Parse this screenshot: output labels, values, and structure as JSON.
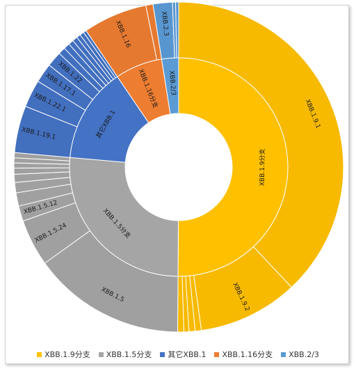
{
  "chart_data": {
    "type": "sunburst",
    "title": "",
    "legend_placement": "bottom",
    "colors": {
      "其它XBB.1": "#4472c4",
      "XBB.1.16分支": "#ed7d31",
      "XBB.1.5分支": "#a5a5a5",
      "XBB.1.9分支": "#ffc000",
      "XBB.2/3": "#5b9bd5"
    },
    "inner": [
      {
        "name": "XBB.1.9分支",
        "value": 50.1
      },
      {
        "name": "XBB.1.5分支",
        "value": 26.3
      },
      {
        "name": "其它XBB.1",
        "value": 14.1
      },
      {
        "name": "XBB.1.16分支",
        "value": 7.0
      },
      {
        "name": "XBB.2/3",
        "value": 2.5
      }
    ],
    "outer": [
      {
        "group": "XBB.1.9分支",
        "name": "XBB.1.9.1",
        "value": 38.0
      },
      {
        "group": "XBB.1.9分支",
        "name": "XBB.1.9.2",
        "value": 9.8
      },
      {
        "group": "XBB.1.9分支",
        "name": "",
        "value": 0.6
      },
      {
        "group": "XBB.1.9分支",
        "name": "",
        "value": 0.6
      },
      {
        "group": "XBB.1.9分支",
        "name": "",
        "value": 0.5
      },
      {
        "group": "XBB.1.9分支",
        "name": "",
        "value": 0.6
      },
      {
        "group": "XBB.1.5分支",
        "name": "XBB.1.5",
        "value": 15.0
      },
      {
        "group": "XBB.1.5分支",
        "name": "XBB.1.5.24",
        "value": 4.6
      },
      {
        "group": "XBB.1.5分支",
        "name": "XBB.1.5.12",
        "value": 1.5
      },
      {
        "group": "XBB.1.5分支",
        "name": "",
        "value": 1.3
      },
      {
        "group": "XBB.1.5分支",
        "name": "",
        "value": 1.0
      },
      {
        "group": "XBB.1.5分支",
        "name": "",
        "value": 0.8
      },
      {
        "group": "XBB.1.5分支",
        "name": "",
        "value": 0.6
      },
      {
        "group": "XBB.1.5分支",
        "name": "",
        "value": 0.5
      },
      {
        "group": "XBB.1.5分支",
        "name": "",
        "value": 0.5
      },
      {
        "group": "XBB.1.5分支",
        "name": "",
        "value": 0.5
      },
      {
        "group": "其它XBB.1",
        "name": "XBB.1.19.1",
        "value": 4.6
      },
      {
        "group": "其它XBB.1",
        "name": "XBB.1.22.1",
        "value": 2.7
      },
      {
        "group": "其它XBB.1",
        "name": "XBB.1.17.1",
        "value": 1.9
      },
      {
        "group": "其它XBB.1",
        "name": "XBB.1.22",
        "value": 1.5
      },
      {
        "group": "其它XBB.1",
        "name": "",
        "value": 0.7
      },
      {
        "group": "其它XBB.1",
        "name": "",
        "value": 0.6
      },
      {
        "group": "其它XBB.1",
        "name": "",
        "value": 0.5
      },
      {
        "group": "其它XBB.1",
        "name": "",
        "value": 0.5
      },
      {
        "group": "其它XBB.1",
        "name": "",
        "value": 0.4
      },
      {
        "group": "其它XBB.1",
        "name": "",
        "value": 0.4
      },
      {
        "group": "其它XBB.1",
        "name": "",
        "value": 0.3
      },
      {
        "group": "XBB.1.16分支",
        "name": "XBB.1.16",
        "value": 6.3
      },
      {
        "group": "XBB.1.16分支",
        "name": "",
        "value": 0.7
      },
      {
        "group": "XBB.2/3",
        "name": "XBB.2.3",
        "value": 1.9
      },
      {
        "group": "XBB.2/3",
        "name": "",
        "value": 0.3
      },
      {
        "group": "XBB.2/3",
        "name": "",
        "value": 0.3
      }
    ]
  }
}
